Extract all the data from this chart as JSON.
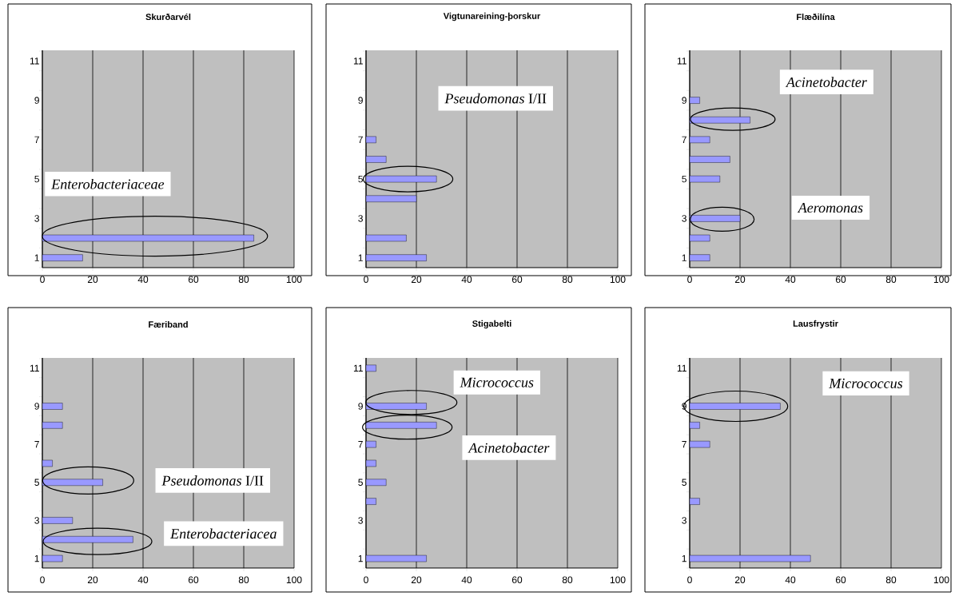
{
  "chart_data": [
    {
      "type": "bar",
      "orientation": "horizontal",
      "title": "Skurðarvél",
      "categories": [
        "11",
        null,
        "9",
        null,
        "7",
        null,
        "5",
        null,
        "3",
        null,
        "1"
      ],
      "values": [
        null,
        null,
        null,
        null,
        null,
        null,
        null,
        null,
        null,
        84,
        16
      ],
      "color": "#9999ff",
      "xlim": [
        0,
        100
      ],
      "xticks": [
        0,
        20,
        40,
        60,
        80,
        100
      ],
      "grid": "x",
      "annotations": [
        "*Enterobacteriaceae*"
      ]
    },
    {
      "type": "bar",
      "orientation": "horizontal",
      "title": "Vigtunareining-þorskur",
      "categories": [
        "11",
        null,
        "9",
        null,
        "7",
        null,
        "5",
        null,
        "3",
        null,
        "1"
      ],
      "values": [
        null,
        null,
        null,
        null,
        4,
        8,
        28,
        20,
        null,
        16,
        24
      ],
      "color": "#9999ff",
      "xlim": [
        0,
        100
      ],
      "xticks": [
        0,
        20,
        40,
        60,
        80,
        100
      ],
      "grid": "x",
      "annotations": [
        "*Pseudomonas* I/II"
      ]
    },
    {
      "type": "bar",
      "orientation": "horizontal",
      "title": "Flæðilína",
      "categories": [
        "11",
        null,
        "9",
        null,
        "7",
        null,
        "5",
        null,
        "3",
        null,
        "1"
      ],
      "values": [
        null,
        null,
        4,
        24,
        8,
        16,
        12,
        null,
        20,
        8,
        8
      ],
      "color": "#9999ff",
      "xlim": [
        0,
        100
      ],
      "xticks": [
        0,
        20,
        40,
        60,
        80,
        100
      ],
      "grid": "x",
      "annotations": [
        "*Acinetobacter*",
        "*Aeromonas*"
      ]
    },
    {
      "type": "bar",
      "orientation": "horizontal",
      "title": "Færiband",
      "categories": [
        "11",
        null,
        "9",
        null,
        "7",
        null,
        "5",
        null,
        "3",
        null,
        "1"
      ],
      "values": [
        null,
        null,
        8,
        8,
        null,
        4,
        24,
        null,
        12,
        36,
        8
      ],
      "color": "#9999ff",
      "xlim": [
        0,
        100
      ],
      "xticks": [
        0,
        20,
        40,
        60,
        80,
        100
      ],
      "grid": "x",
      "annotations": [
        "*Pseudomonas* I/II",
        "*Enterobacteriacea*"
      ]
    },
    {
      "type": "bar",
      "orientation": "horizontal",
      "title": "Stigabelti",
      "categories": [
        "11",
        null,
        "9",
        null,
        "7",
        null,
        "5",
        null,
        "3",
        null,
        "1"
      ],
      "values": [
        4,
        null,
        24,
        28,
        4,
        4,
        8,
        4,
        null,
        null,
        24
      ],
      "color": "#9999ff",
      "xlim": [
        0,
        100
      ],
      "xticks": [
        0,
        20,
        40,
        60,
        80,
        100
      ],
      "grid": "x",
      "annotations": [
        "*Micrococcus*",
        "*Acinetobacter*"
      ]
    },
    {
      "type": "bar",
      "orientation": "horizontal",
      "title": "Lausfrystir",
      "categories": [
        "11",
        null,
        "9",
        null,
        "7",
        null,
        "5",
        null,
        "3",
        null,
        "1"
      ],
      "values": [
        null,
        null,
        36,
        4,
        8,
        null,
        null,
        4,
        null,
        null,
        48
      ],
      "color": "#9999ff",
      "xlim": [
        0,
        100
      ],
      "xticks": [
        0,
        20,
        40,
        60,
        80,
        100
      ],
      "grid": "x",
      "annotations": [
        "*Micrococcus*"
      ]
    }
  ]
}
